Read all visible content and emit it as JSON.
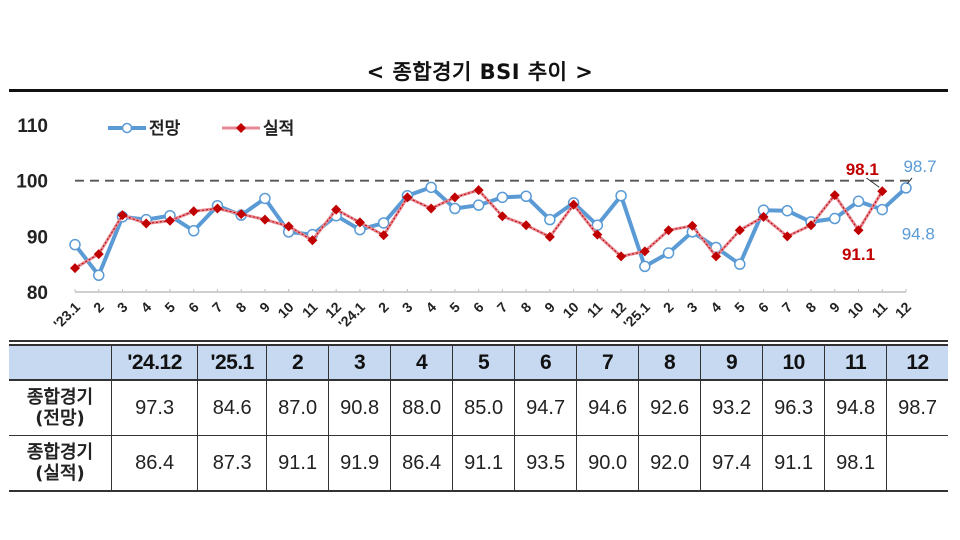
{
  "title": "< 종합경기 BSI 추이 >",
  "legend": [
    {
      "name": "전망",
      "color": "#5b9bd5",
      "marker": "open-circle"
    },
    {
      "name": "실적",
      "color": "#c00000",
      "marker": "diamond"
    }
  ],
  "chart_data": {
    "type": "line",
    "title": "< 종합경기 BSI 추이 >",
    "xlabel": "",
    "ylabel": "",
    "ylim": [
      80,
      110
    ],
    "yticks": [
      80,
      90,
      100,
      110
    ],
    "reference_line": {
      "y": 100,
      "style": "dashed",
      "color": "#555555"
    },
    "legend_position": "top-left",
    "grid": false,
    "categories": [
      "'23.1",
      "2",
      "3",
      "4",
      "5",
      "6",
      "7",
      "8",
      "9",
      "10",
      "11",
      "12",
      "'24.1",
      "2",
      "3",
      "4",
      "5",
      "6",
      "7",
      "8",
      "9",
      "10",
      "11",
      "12",
      "'25.1",
      "2",
      "3",
      "4",
      "5",
      "6",
      "7",
      "8",
      "9",
      "10",
      "11",
      "12"
    ],
    "series": [
      {
        "name": "전망",
        "color": "#5b9bd5",
        "values": [
          88.5,
          83.0,
          93.5,
          93.0,
          93.7,
          91.0,
          95.5,
          93.8,
          96.8,
          90.8,
          90.3,
          93.7,
          91.2,
          92.4,
          97.3,
          98.8,
          95.0,
          95.6,
          97.0,
          97.2,
          93.0,
          96.0,
          92.0,
          97.3,
          84.6,
          87.0,
          90.8,
          88.0,
          85.0,
          94.7,
          94.6,
          92.6,
          93.2,
          96.3,
          94.8,
          98.7
        ]
      },
      {
        "name": "실적",
        "color": "#c00000",
        "values": [
          84.3,
          86.8,
          93.8,
          92.3,
          92.8,
          94.5,
          95.0,
          94.0,
          93.0,
          91.8,
          89.3,
          94.8,
          92.5,
          90.2,
          97.0,
          95.0,
          97.0,
          98.3,
          93.6,
          92.0,
          89.9,
          95.7,
          90.3,
          86.4,
          87.3,
          91.1,
          91.9,
          86.4,
          91.1,
          93.5,
          90.0,
          92.0,
          97.4,
          91.1,
          98.1,
          null
        ]
      }
    ],
    "annotations": [
      {
        "text": "98.1",
        "series": "실적",
        "x": "11",
        "color": "#c00000"
      },
      {
        "text": "91.1",
        "series": "실적",
        "x": "10",
        "color": "#c00000"
      },
      {
        "text": "98.7",
        "series": "전망",
        "x": "12",
        "color": "#5b9bd5"
      },
      {
        "text": "94.8",
        "series": "전망",
        "x": "11",
        "color": "#5b9bd5"
      }
    ]
  },
  "table": {
    "headers": [
      "",
      "'24.12",
      "'25.1",
      "2",
      "3",
      "4",
      "5",
      "6",
      "7",
      "8",
      "9",
      "10",
      "11",
      "12"
    ],
    "rows": [
      {
        "label_line1": "종합경기",
        "label_line2": "(전망)",
        "values": [
          "97.3",
          "84.6",
          "87.0",
          "90.8",
          "88.0",
          "85.0",
          "94.7",
          "94.6",
          "92.6",
          "93.2",
          "96.3",
          "94.8",
          "98.7"
        ]
      },
      {
        "label_line1": "종합경기",
        "label_line2": "(실적)",
        "values": [
          "86.4",
          "87.3",
          "91.1",
          "91.9",
          "86.4",
          "91.1",
          "93.5",
          "90.0",
          "92.0",
          "97.4",
          "91.1",
          "98.1",
          ""
        ]
      }
    ]
  }
}
